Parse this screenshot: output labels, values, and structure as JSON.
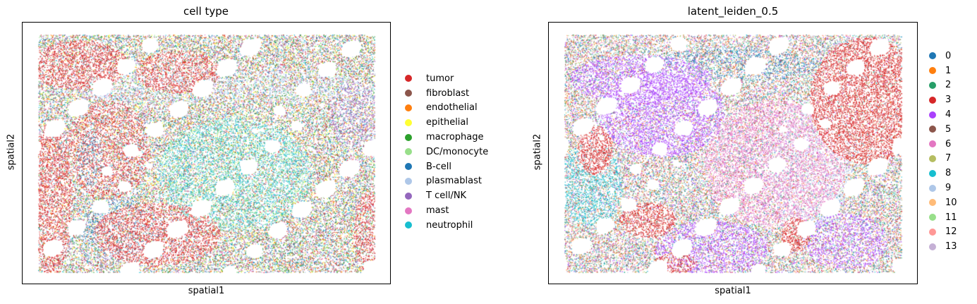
{
  "chart_data": [
    {
      "type": "scatter",
      "title": "cell type",
      "xlabel": "spatial1",
      "ylabel": "spatial2",
      "grid": false,
      "legend_position": "right",
      "legend": [
        {
          "label": "tumor",
          "color": "#d62728"
        },
        {
          "label": "fibroblast",
          "color": "#8c564b"
        },
        {
          "label": "endothelial",
          "color": "#ff7f0e"
        },
        {
          "label": "epithelial",
          "color": "#ffff33"
        },
        {
          "label": "macrophage",
          "color": "#2ca02c"
        },
        {
          "label": "DC/monocyte",
          "color": "#98df8a"
        },
        {
          "label": "B-cell",
          "color": "#1f77b4"
        },
        {
          "label": "plasmablast",
          "color": "#aec7e8"
        },
        {
          "label": "T cell/NK",
          "color": "#9467bd"
        },
        {
          "label": "mast",
          "color": "#e377c2"
        },
        {
          "label": "neutrophil",
          "color": "#17becf"
        }
      ]
    },
    {
      "type": "scatter",
      "title": "latent_leiden_0.5",
      "xlabel": "spatial1",
      "ylabel": "spatial2",
      "grid": false,
      "legend_position": "right",
      "legend": [
        {
          "label": "0",
          "color": "#1f77b4"
        },
        {
          "label": "1",
          "color": "#ff7f0e"
        },
        {
          "label": "2",
          "color": "#279e68"
        },
        {
          "label": "3",
          "color": "#d62728"
        },
        {
          "label": "4",
          "color": "#aa40fc"
        },
        {
          "label": "5",
          "color": "#8c564b"
        },
        {
          "label": "6",
          "color": "#e377c2"
        },
        {
          "label": "7",
          "color": "#b5bd61"
        },
        {
          "label": "8",
          "color": "#17becf"
        },
        {
          "label": "9",
          "color": "#aec7e8"
        },
        {
          "label": "10",
          "color": "#ffbb78"
        },
        {
          "label": "11",
          "color": "#98df8a"
        },
        {
          "label": "12",
          "color": "#ff9896"
        },
        {
          "label": "13",
          "color": "#c5b0d5"
        }
      ]
    }
  ]
}
